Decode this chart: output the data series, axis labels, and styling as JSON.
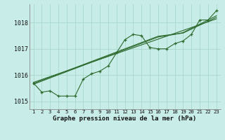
{
  "x": [
    1,
    2,
    3,
    4,
    5,
    6,
    7,
    8,
    9,
    10,
    11,
    12,
    13,
    14,
    15,
    16,
    17,
    18,
    19,
    20,
    21,
    22,
    23
  ],
  "line_jagged": [
    1015.7,
    1015.35,
    1015.4,
    1015.2,
    1015.2,
    1015.2,
    1015.85,
    1016.05,
    1016.15,
    1016.35,
    1016.85,
    1017.35,
    1017.55,
    1017.5,
    1017.05,
    1017.0,
    1017.0,
    1017.2,
    1017.3,
    1017.55,
    1018.1,
    1018.1,
    1018.45
  ],
  "line_trend1": [
    1015.72,
    1015.83,
    1015.94,
    1016.05,
    1016.16,
    1016.27,
    1016.38,
    1016.49,
    1016.6,
    1016.71,
    1016.82,
    1016.93,
    1017.04,
    1017.15,
    1017.26,
    1017.37,
    1017.48,
    1017.59,
    1017.7,
    1017.81,
    1017.92,
    1018.03,
    1018.14
  ],
  "line_trend2": [
    1015.68,
    1015.8,
    1015.92,
    1016.04,
    1016.16,
    1016.28,
    1016.4,
    1016.52,
    1016.64,
    1016.76,
    1016.88,
    1017.0,
    1017.12,
    1017.24,
    1017.36,
    1017.48,
    1017.52,
    1017.56,
    1017.6,
    1017.75,
    1017.9,
    1018.05,
    1018.2
  ],
  "line_trend3": [
    1015.65,
    1015.77,
    1015.89,
    1016.01,
    1016.13,
    1016.25,
    1016.37,
    1016.49,
    1016.61,
    1016.73,
    1016.85,
    1016.97,
    1017.09,
    1017.21,
    1017.33,
    1017.45,
    1017.5,
    1017.55,
    1017.62,
    1017.78,
    1017.94,
    1018.1,
    1018.26
  ],
  "bg_color": "#c8ece8",
  "grid_color": "#a8d8cc",
  "line_color": "#2d6a2d",
  "ylabel_ticks": [
    1015,
    1016,
    1017,
    1018
  ],
  "xlabel": "Graphe pression niveau de la mer (hPa)",
  "ylim": [
    1014.7,
    1018.7
  ],
  "xlim": [
    0.5,
    23.5
  ]
}
